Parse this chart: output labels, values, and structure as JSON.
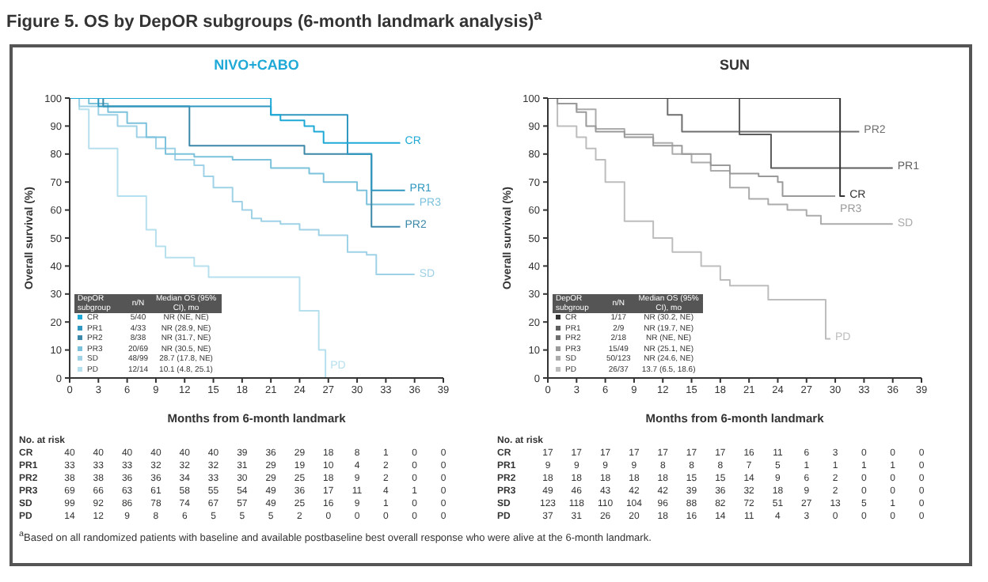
{
  "chart_data": [
    {
      "type": "step",
      "title": "Figure 5. OS by DepOR subgroups (6-month landmark analysis)$^{a}$",
      "subtitle": "NIVO+CABO",
      "xlabel": "Months from 6-month landmark",
      "ylabel": "Overall survival (%)",
      "legend": "bottom left",
      "legend_title": "DepOR subgroup",
      "xlim": [
        0,
        39
      ],
      "xticks": [
        0,
        3,
        6,
        9,
        12,
        15,
        18,
        21,
        24,
        27,
        30,
        33,
        36,
        39
      ],
      "ylim": [
        0,
        100
      ],
      "yticks": [
        0,
        10,
        20,
        30,
        40,
        50,
        60,
        70,
        80,
        90,
        100
      ],
      "grid": false,
      "series": [
        {
          "name": "CR",
          "color": "#1fa9d6",
          "x": [
            0,
            20.5,
            21,
            22,
            24.5,
            25.5,
            26.5,
            34.5
          ],
          "values": [
            100,
            100,
            94,
            92,
            90,
            88,
            84,
            84
          ]
        },
        {
          "name": "PR1",
          "color": "#2f97c0",
          "x": [
            0,
            3,
            16,
            21,
            29,
            31.5,
            35
          ],
          "values": [
            100,
            97,
            97,
            94,
            80,
            67,
            67
          ]
        },
        {
          "name": "PR2",
          "color": "#3b88a8",
          "x": [
            0,
            3.5,
            12.5,
            24.5,
            31.5,
            34.5
          ],
          "values": [
            100,
            97,
            83,
            80,
            54,
            54
          ]
        },
        {
          "name": "PR3",
          "color": "#7cc2dc",
          "x": [
            0,
            2,
            4,
            6,
            8,
            10,
            13,
            17,
            21,
            25,
            26.5,
            30,
            31,
            36
          ],
          "values": [
            100,
            98,
            95,
            91,
            86,
            80,
            79,
            78,
            75,
            73,
            70,
            67,
            62,
            62
          ]
        },
        {
          "name": "SD",
          "color": "#9fd2e6",
          "x": [
            0,
            1,
            3,
            5,
            7,
            9,
            11,
            13,
            14,
            15,
            17,
            18,
            19,
            20,
            22,
            24,
            26,
            29,
            31,
            32,
            36
          ],
          "values": [
            100,
            97,
            94,
            90,
            86,
            82,
            78,
            76,
            72,
            68,
            63,
            60,
            57,
            56,
            55,
            53,
            51,
            45,
            44,
            37,
            37
          ]
        },
        {
          "name": "PD",
          "color": "#b7e0ee",
          "x": [
            0,
            1,
            2,
            5,
            8,
            9,
            10,
            13,
            14.5,
            22,
            24,
            26,
            26.7
          ],
          "values": [
            100,
            96,
            82,
            65,
            53,
            47,
            43,
            40,
            36,
            36,
            24,
            10,
            0
          ]
        }
      ],
      "annotations": [
        "n/N",
        "Median OS (95% CI), mo",
        "5/40",
        "4/33",
        "8/38",
        "20/69",
        "48/99",
        "12/14",
        "NR (NE, NE)",
        "NR (28.9, NE)",
        "NR (31.7, NE)",
        "NR (30.5, NE)",
        "28.7 (17.8, NE)",
        "10.1 (4.8, 25.1)",
        "No. at risk",
        "40 40 40 40 40 40 39 36 29 18 8 1 0 0",
        "33 33 33 32 32 32 31 29 19 10 4 2 0 0",
        "38 38 36 36 34 33 30 29 25 18 9 2 0 0",
        "69 66 63 61 58 55 54 49 36 17 11 4 1 0",
        "99 92 86 78 74 67 57 49 25 16 9 1 0 0",
        "14 12 9 8 6 5 5 5 2 0 0 0 0 0",
        "$^{a}$Based on all randomized patients with baseline and available postbaseline best overall response who were alive at the 6-month landmark."
      ]
    },
    {
      "type": "step",
      "subtitle": "SUN",
      "xlabel": "Months from 6-month landmark",
      "ylabel": "Overall survival (%)",
      "legend": "bottom left",
      "legend_title": "DepOR subgroup",
      "xlim": [
        0,
        39
      ],
      "xticks": [
        0,
        3,
        6,
        9,
        12,
        15,
        18,
        21,
        24,
        27,
        30,
        33,
        36,
        39
      ],
      "ylim": [
        0,
        100
      ],
      "yticks": [
        0,
        10,
        20,
        30,
        40,
        50,
        60,
        70,
        80,
        90,
        100
      ],
      "grid": false,
      "series": [
        {
          "name": "CR",
          "color": "#333333",
          "x": [
            0,
            20,
            22.5,
            25,
            27.5,
            29.5,
            30.5,
            31
          ],
          "values": [
            100,
            100,
            100,
            100,
            100,
            100,
            65,
            65
          ]
        },
        {
          "name": "PR1",
          "color": "#5e5e5e",
          "x": [
            0,
            20,
            23.3,
            36
          ],
          "values": [
            100,
            87,
            75,
            75
          ]
        },
        {
          "name": "PR2",
          "color": "#6e6e6e",
          "x": [
            0,
            12.5,
            14,
            32.5
          ],
          "values": [
            100,
            94,
            88,
            88
          ]
        },
        {
          "name": "PR3",
          "color": "#9a9a9a",
          "x": [
            0,
            1,
            3,
            4,
            5,
            8,
            11,
            14,
            17,
            19,
            22,
            24,
            24.5,
            30
          ],
          "values": [
            100,
            98,
            95,
            90,
            88,
            86,
            83,
            80,
            76,
            73,
            72,
            70,
            65,
            65
          ]
        },
        {
          "name": "SD",
          "color": "#ababab",
          "x": [
            0,
            1,
            3,
            5,
            8,
            11,
            13,
            15,
            17,
            19,
            21,
            23,
            25,
            27,
            28.5,
            36
          ],
          "values": [
            100,
            98,
            96,
            89,
            87,
            84,
            80,
            77,
            74,
            68,
            64,
            62,
            60,
            58,
            55,
            55
          ]
        },
        {
          "name": "PD",
          "color": "#bdbdbd",
          "x": [
            0,
            1,
            3,
            4,
            5,
            6,
            8,
            11,
            13,
            16,
            18,
            19,
            23,
            29,
            29.5
          ],
          "values": [
            100,
            90,
            86,
            82,
            78,
            70,
            56,
            50,
            45,
            40,
            35,
            33,
            28,
            14,
            14
          ]
        }
      ],
      "annotations": [
        "n/N",
        "Median OS (95% CI), mo",
        "1/17",
        "2/9",
        "2/18",
        "15/49",
        "50/123",
        "26/37",
        "NR (30.2, NE)",
        "NR (19.7, NE)",
        "NR (NE, NE)",
        "NR (25.1, NE)",
        "NR (24.6, NE)",
        "13.7 (6.5, 18.6)",
        "No. at risk",
        "17 17 17 17 17 17 17 16 11 6 3 0 0 0",
        "9 9 9 9 8 8 8 7 5 1 1 1 1 0",
        "18 18 18 18 18 15 15 14 9 6 2 0 0 0",
        "49 46 43 42 42 39 36 32 18 9 2 0 0 0",
        "123 118 110 104 96 88 82 72 51 27 13 5 1 0",
        "37 31 26 20 18 16 14 11 4 3 0 0 0 0"
      ]
    }
  ]
}
